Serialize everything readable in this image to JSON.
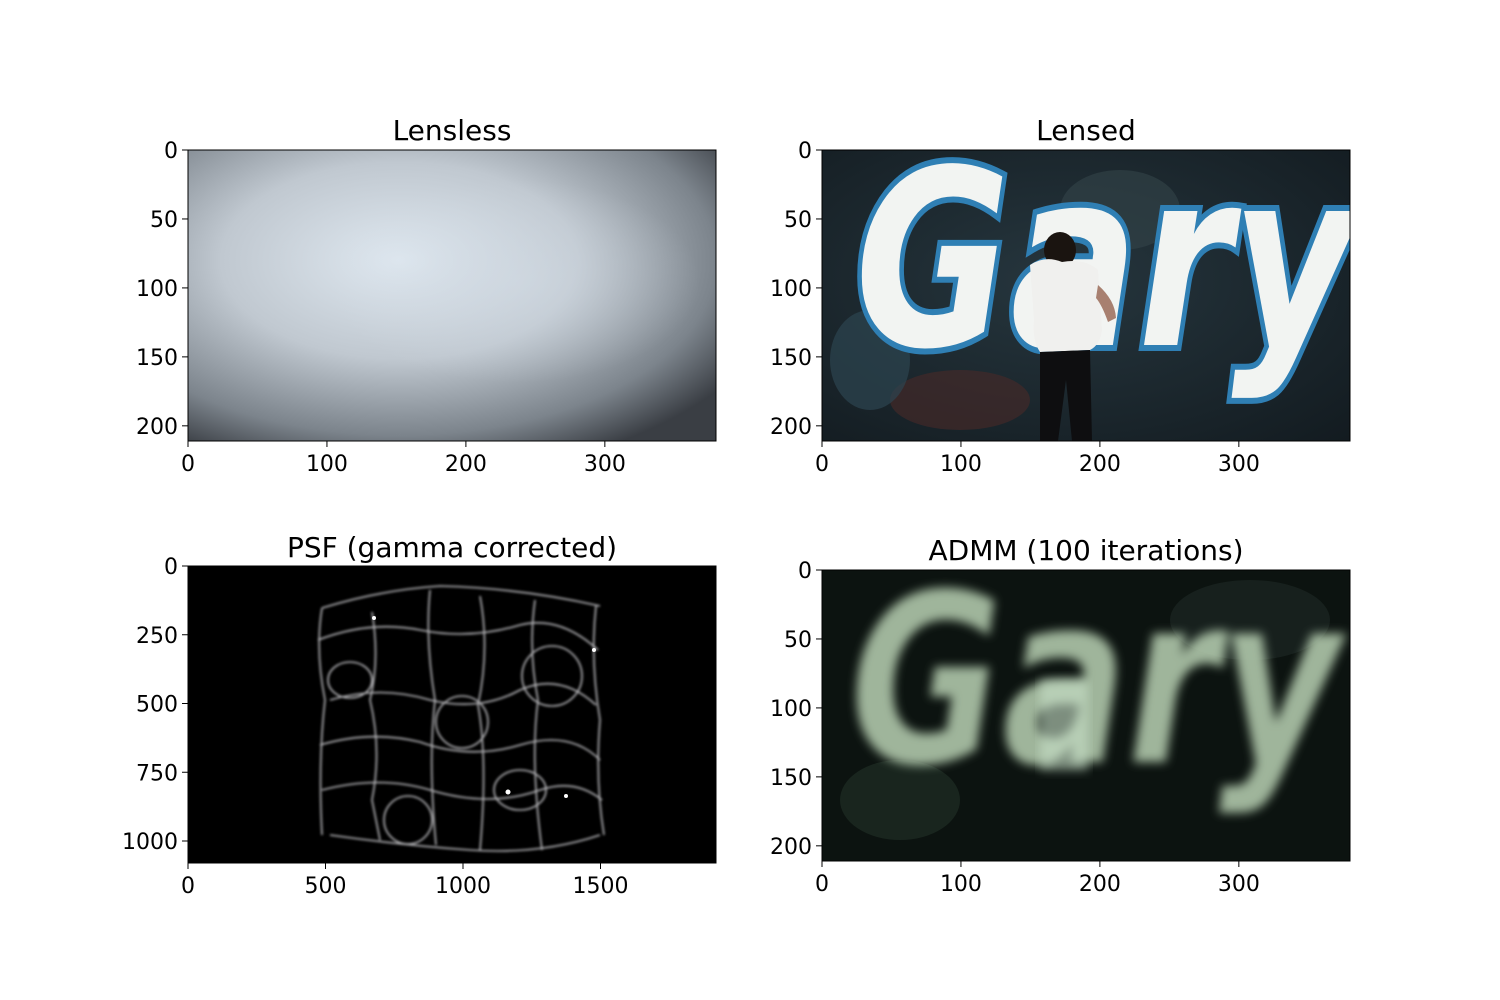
{
  "figure": {
    "background": "#ffffff"
  },
  "chart_data": [
    {
      "type": "image",
      "title": "Lensless",
      "content": "lensless-measurement",
      "xlim": [
        0,
        380
      ],
      "ylim": [
        211,
        0
      ],
      "xticks": [
        0,
        100,
        200,
        300
      ],
      "yticks": [
        0,
        50,
        100,
        150,
        200
      ],
      "colors": {
        "center": "#dfe8f0",
        "edge": "#3a3e44"
      }
    },
    {
      "type": "image",
      "title": "Lensed",
      "content": "graffiti-photo",
      "image_text": "Gary",
      "xlim": [
        0,
        380
      ],
      "ylim": [
        211,
        0
      ],
      "xticks": [
        0,
        100,
        200,
        300
      ],
      "yticks": [
        0,
        50,
        100,
        150,
        200
      ],
      "colors": {
        "background": "#1b2a33",
        "letter_fill": "#f2f4f2",
        "letter_outline": "#2f7fb4",
        "shirt": "#f0f0ee"
      }
    },
    {
      "type": "image",
      "title": "PSF (gamma corrected)",
      "content": "psf-caustic-pattern",
      "xlim": [
        0,
        1920
      ],
      "ylim": [
        1080,
        0
      ],
      "xticks": [
        0,
        500,
        1000,
        1500
      ],
      "yticks": [
        0,
        250,
        500,
        750,
        1000
      ],
      "colors": {
        "background": "#000000",
        "pattern": "#d8d8dc"
      }
    },
    {
      "type": "image",
      "title": "ADMM (100 iterations)",
      "content": "admm-reconstruction",
      "image_text": "Gary",
      "xlim": [
        0,
        380
      ],
      "ylim": [
        211,
        0
      ],
      "xticks": [
        0,
        100,
        200,
        300
      ],
      "yticks": [
        0,
        50,
        100,
        150,
        200
      ],
      "colors": {
        "background": "#0c1310",
        "letters": "#b9d2b4"
      }
    }
  ]
}
